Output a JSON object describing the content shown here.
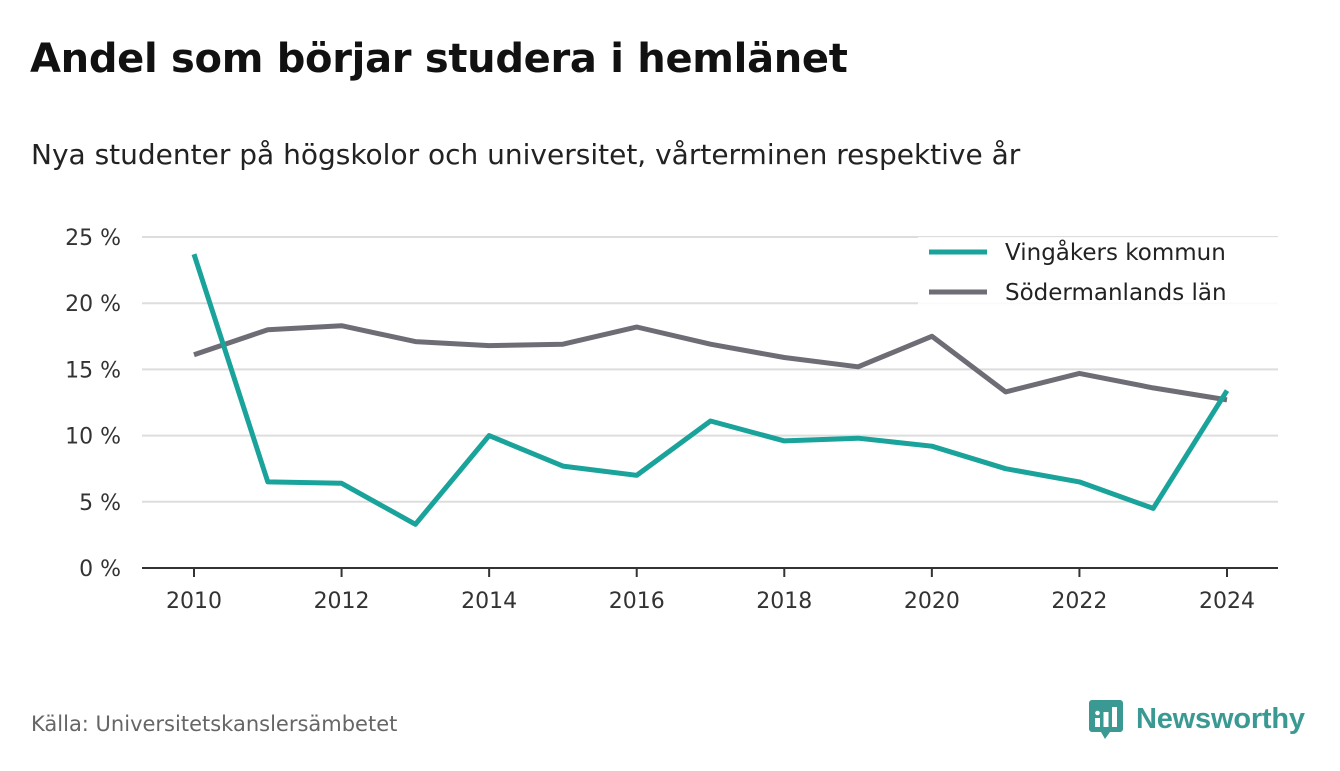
{
  "title": "Andel som börjar studera i hemlänet",
  "subtitle": "Nya studenter på högskolor och universitet, vårterminen respektive år",
  "source": "Källa: Universitetskanslersämbetet",
  "brand": {
    "name": "Newsworthy",
    "color": "#3a9a93",
    "icon": "newsworthy-logo-icon"
  },
  "chart_data": {
    "type": "line",
    "x": [
      2010,
      2011,
      2012,
      2013,
      2014,
      2015,
      2016,
      2017,
      2018,
      2019,
      2020,
      2021,
      2022,
      2023,
      2024
    ],
    "series": [
      {
        "name": "Vingåkers kommun",
        "color": "#1aa39a",
        "values": [
          23.7,
          6.5,
          6.4,
          3.3,
          10.0,
          7.7,
          7.0,
          11.1,
          9.6,
          9.8,
          9.2,
          7.5,
          6.5,
          4.5,
          13.4
        ]
      },
      {
        "name": "Södermanlands län",
        "color": "#6e6d75",
        "values": [
          16.1,
          18.0,
          18.3,
          17.1,
          16.8,
          16.9,
          18.2,
          16.9,
          15.9,
          15.2,
          17.5,
          13.3,
          14.7,
          13.6,
          12.7
        ]
      }
    ],
    "ylim": [
      0,
      25
    ],
    "yticks": [
      0,
      5,
      10,
      15,
      20,
      25
    ],
    "ytick_labels": [
      "0 %",
      "5 %",
      "10 %",
      "15 %",
      "20 %",
      "25 %"
    ],
    "xticks": [
      2010,
      2012,
      2014,
      2016,
      2018,
      2020,
      2022,
      2024
    ],
    "xtick_labels": [
      "2010",
      "2012",
      "2014",
      "2016",
      "2018",
      "2020",
      "2022",
      "2024"
    ],
    "grid": true,
    "legend": "top-right",
    "gridline_color": "#dddddd",
    "axis_color": "#333333"
  }
}
